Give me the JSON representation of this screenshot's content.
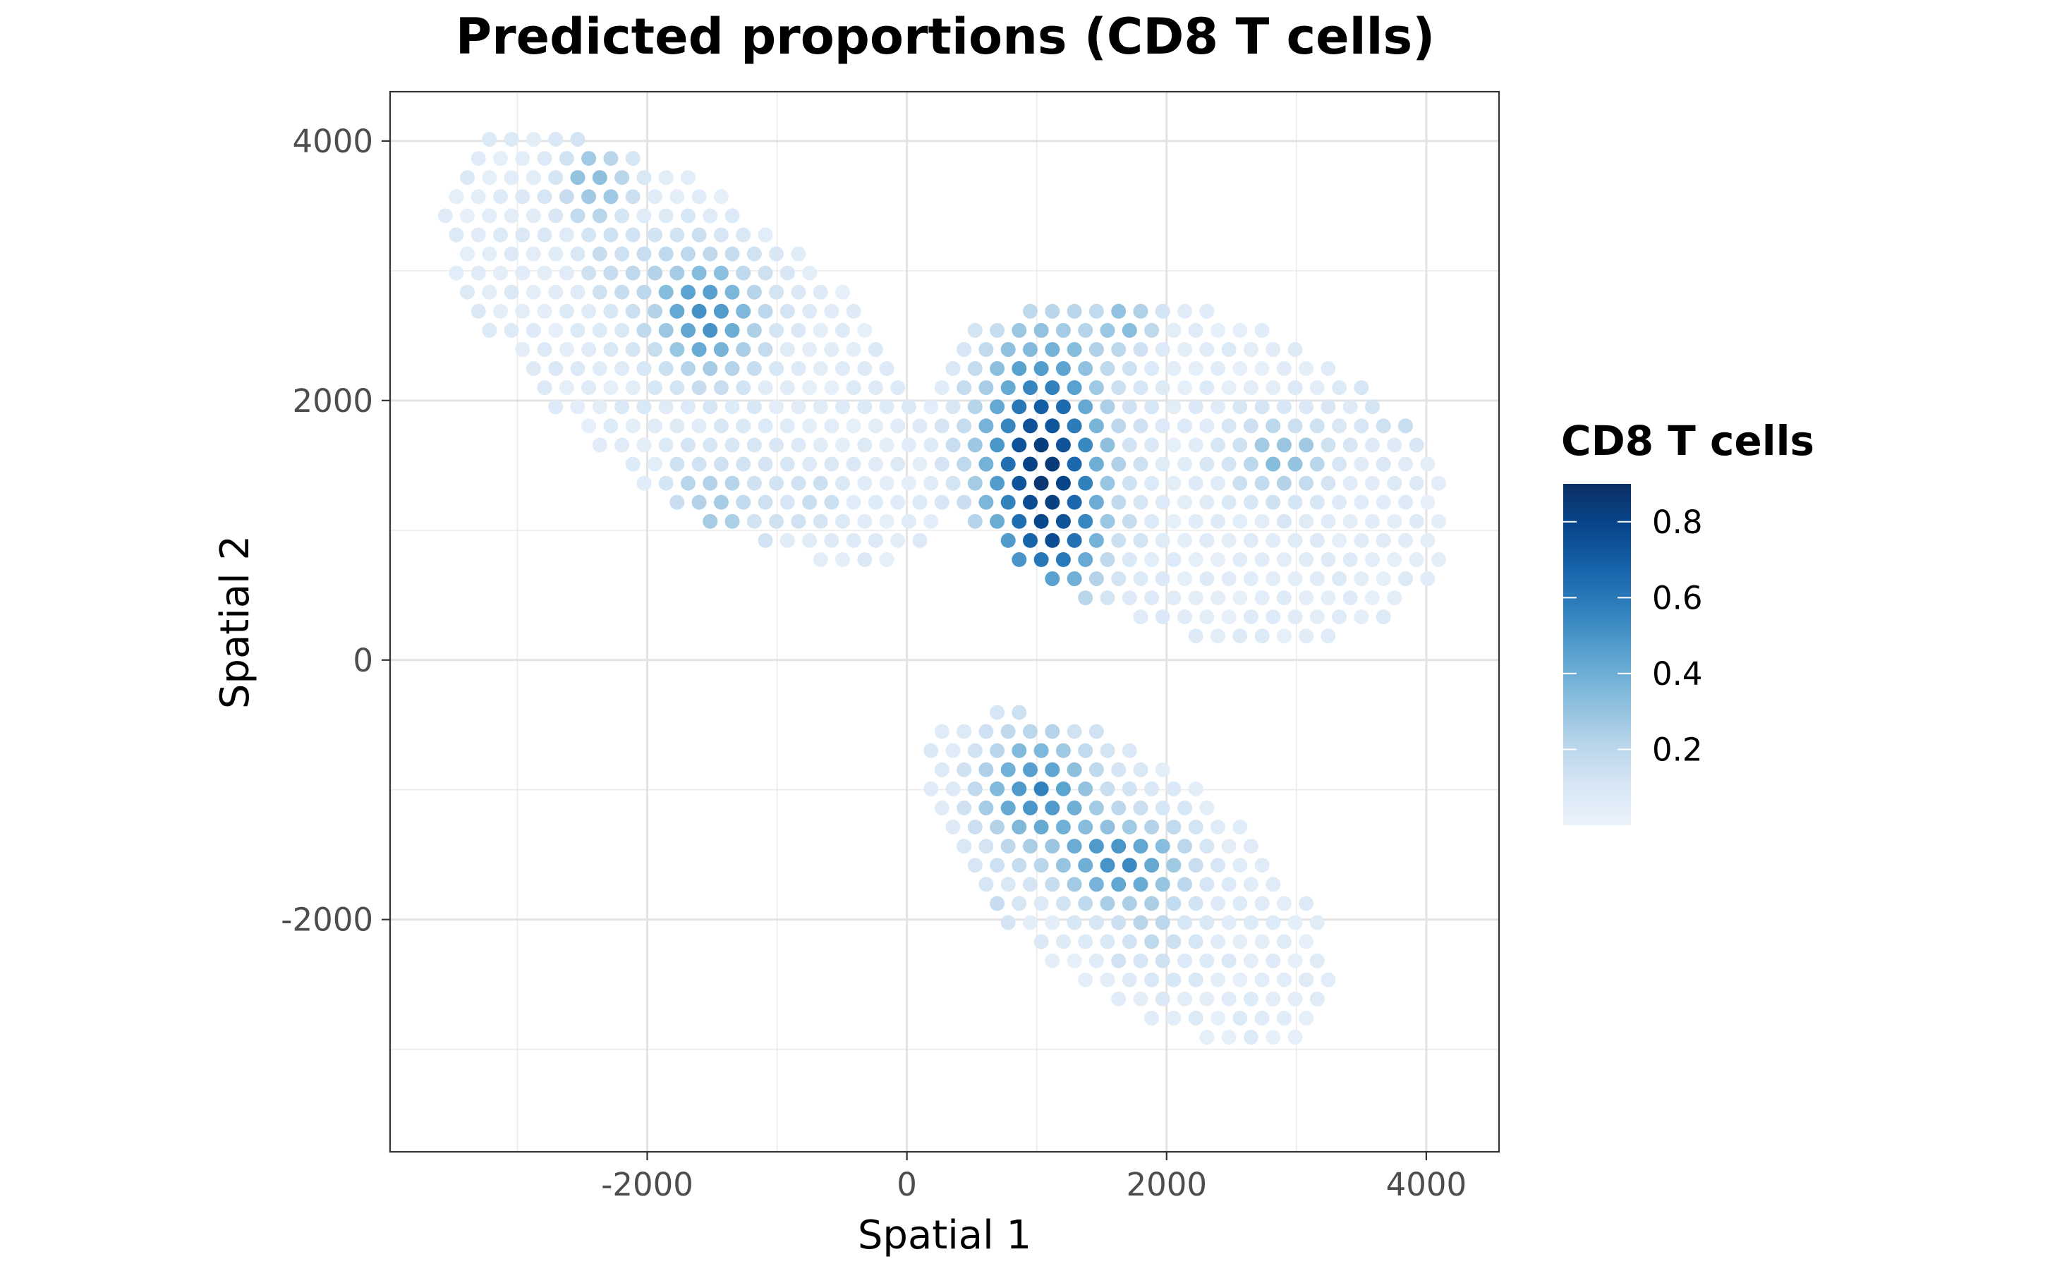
{
  "chart_data": {
    "type": "scatter",
    "title": "Predicted proportions (CD8 T cells)",
    "xlabel": "Spatial 1",
    "ylabel": "Spatial 2",
    "xlim": [
      -3980,
      4560
    ],
    "ylim": [
      -3790,
      4380
    ],
    "xticks": [
      -2000,
      0,
      2000,
      4000
    ],
    "xtick_labels": [
      "-2000",
      "0",
      "2000",
      "4000"
    ],
    "yticks": [
      -2000,
      0,
      2000,
      4000
    ],
    "ytick_labels": [
      "-2000",
      "0",
      "2000",
      "4000"
    ],
    "grid": true,
    "legend": {
      "title": "CD8 T cells",
      "placement": "right",
      "range": [
        0.0,
        0.9
      ],
      "ticks": [
        0.2,
        0.4,
        0.6,
        0.8
      ],
      "tick_labels": [
        "0.2",
        "0.4",
        "0.6",
        "0.8"
      ]
    },
    "colorscale": [
      "#eaf2fb",
      "#d5e5f4",
      "#b4d3e9",
      "#86bcdc",
      "#5ba3d0",
      "#3282be",
      "#1764ab",
      "#08468b",
      "#0b2f66"
    ],
    "spot_spacing": 170,
    "regions": [
      {
        "name": "upper-left",
        "center": [
          -1620,
          2400
        ],
        "semi_major": 2350,
        "semi_minor": 1080,
        "angle_deg": -38
      },
      {
        "name": "upper-right",
        "center": [
          2150,
          1460
        ],
        "semi_major": 2100,
        "semi_minor": 1230,
        "angle_deg": -17
      },
      {
        "name": "lower",
        "center": [
          1710,
          -1680
        ],
        "semi_major": 1850,
        "semi_minor": 870,
        "angle_deg": -36
      }
    ],
    "hotspots": [
      {
        "x": 1050,
        "y": 1550,
        "sx": 330,
        "sy": 650,
        "amp": 0.78
      },
      {
        "x": 1130,
        "y": 900,
        "sx": 230,
        "sy": 280,
        "amp": 0.22
      },
      {
        "x": 1000,
        "y": -1000,
        "sx": 300,
        "sy": 300,
        "amp": 0.5
      },
      {
        "x": 1650,
        "y": -1550,
        "sx": 320,
        "sy": 220,
        "amp": 0.48
      },
      {
        "x": -1550,
        "y": 2650,
        "sx": 280,
        "sy": 320,
        "amp": 0.48
      },
      {
        "x": -2400,
        "y": 3700,
        "sx": 180,
        "sy": 220,
        "amp": 0.3
      },
      {
        "x": 2900,
        "y": 1550,
        "sx": 260,
        "sy": 200,
        "amp": 0.28
      },
      {
        "x": -1500,
        "y": 1150,
        "sx": 250,
        "sy": 300,
        "amp": 0.22
      },
      {
        "x": -750,
        "y": 1250,
        "sx": 200,
        "sy": 200,
        "amp": 0.1
      },
      {
        "x": -2200,
        "y": 3000,
        "sx": 250,
        "sy": 200,
        "amp": 0.12
      },
      {
        "x": 3850,
        "y": 2000,
        "sx": 180,
        "sy": 200,
        "amp": 0.2
      },
      {
        "x": 400,
        "y": -2100,
        "sx": 220,
        "sy": 280,
        "amp": 0.26
      },
      {
        "x": 1700,
        "y": 2600,
        "sx": 150,
        "sy": 150,
        "amp": 0.28
      },
      {
        "x": 1900,
        "y": -2100,
        "sx": 250,
        "sy": 250,
        "amp": 0.12
      }
    ],
    "baseline": 0.05
  }
}
